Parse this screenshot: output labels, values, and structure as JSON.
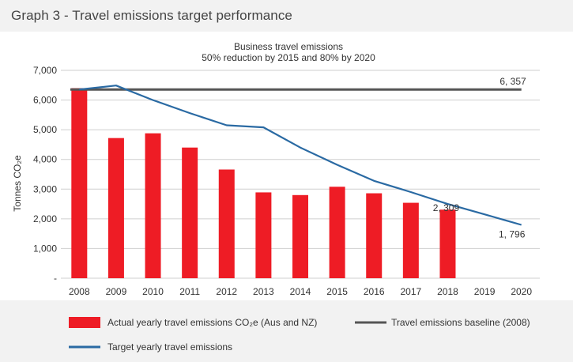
{
  "page": {
    "title": "Graph 3 - Travel emissions target performance"
  },
  "chart_data": {
    "type": "bar",
    "title": "Business travel emissions",
    "subtitle": "50% reduction by 2015 and 80% by 2020",
    "ylabel": "Tonnes CO₂e",
    "xlabel": "",
    "ylim": [
      0,
      7000
    ],
    "yticks": [
      0,
      1000,
      2000,
      3000,
      4000,
      5000,
      6000,
      7000
    ],
    "ytick_labels": [
      "-",
      "1,000",
      "2,000",
      "3,000",
      "4,000",
      "5,000",
      "6,000",
      "7,000"
    ],
    "grid": true,
    "categories": [
      "2008",
      "2009",
      "2010",
      "2011",
      "2012",
      "2013",
      "2014",
      "2015",
      "2016",
      "2017",
      "2018",
      "2019",
      "2020"
    ],
    "series": [
      {
        "name": "Actual yearly travel emissions CO₂e (Aus and NZ)",
        "kind": "bar",
        "color": "#ee1c25",
        "values": [
          6400,
          4720,
          4880,
          4400,
          3660,
          2890,
          2800,
          3080,
          2860,
          2540,
          2309,
          null,
          null
        ]
      },
      {
        "name": "Travel emissions baseline (2008)",
        "kind": "line",
        "color": "#555555",
        "values": [
          6357,
          6357,
          6357,
          6357,
          6357,
          6357,
          6357,
          6357,
          6357,
          6357,
          6357,
          6357,
          6357
        ]
      },
      {
        "name": "Target yearly travel emissions",
        "kind": "line",
        "color": "#2a6aa3",
        "values": [
          6357,
          6490,
          6000,
          5560,
          5150,
          5080,
          4400,
          3820,
          3280,
          2900,
          2500,
          2150,
          1796
        ]
      }
    ],
    "annotations": [
      {
        "text": "6, 357",
        "category": "2020",
        "value": 6357
      },
      {
        "text": "2, 309",
        "category": "2018",
        "value": 2309
      },
      {
        "text": "1, 796",
        "category": "2020",
        "value": 1796
      }
    ],
    "legend": {
      "placement": "bottom",
      "items": [
        {
          "label": "Actual yearly travel emissions CO₂e (Aus and NZ)",
          "symbol": "bar",
          "color": "#ee1c25"
        },
        {
          "label": "Travel emissions baseline (2008)",
          "symbol": "line",
          "color": "#555555"
        },
        {
          "label": "Target yearly travel emissions",
          "symbol": "line",
          "color": "#2a6aa3"
        }
      ]
    }
  }
}
